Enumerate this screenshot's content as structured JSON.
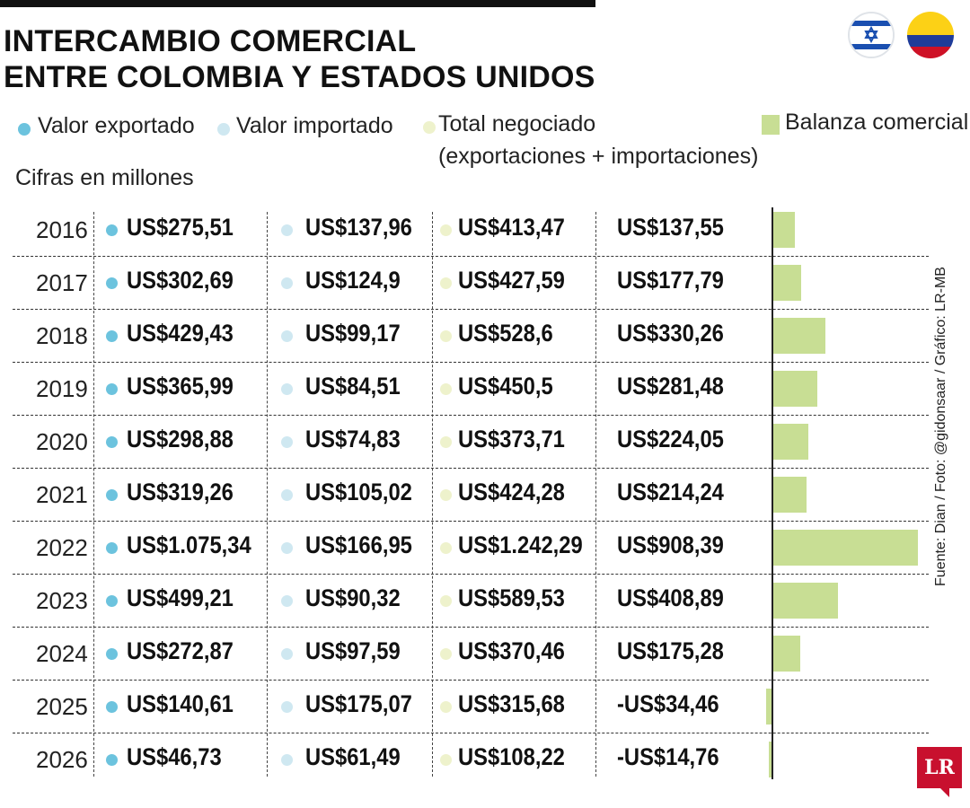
{
  "title": {
    "line1": "INTERCAMBIO COMERCIAL",
    "line2": "ENTRE COLOMBIA Y ESTADOS UNIDOS"
  },
  "legend": {
    "exportado": "Valor exportado",
    "importado": "Valor importado",
    "total_line1": "Total negociado",
    "total_line2": "(exportaciones + importaciones)",
    "balanza": "Balanza comercial"
  },
  "subtitle": "Cifras en millones",
  "credit": "Fuente: Dian / Foto: @gidonsaar / Gráfico: LR-MB",
  "logo": "LR",
  "colors": {
    "exportado": "#6cc3de",
    "importado": "#cfe8f1",
    "total": "#eef2cc",
    "balanza": "#c8de94",
    "title": "#111111"
  },
  "icons": [
    "israel-flag-icon",
    "colombia-flag-icon",
    "lr-logo-icon"
  ],
  "table": {
    "rows": [
      {
        "year": "2016",
        "exportado": "US$275,51",
        "importado": "US$137,96",
        "total": "US$413,47",
        "balanza": "US$137,55"
      },
      {
        "year": "2017",
        "exportado": "US$302,69",
        "importado": "US$124,9",
        "total": "US$427,59",
        "balanza": "US$177,79"
      },
      {
        "year": "2018",
        "exportado": "US$429,43",
        "importado": "US$99,17",
        "total": "US$528,6",
        "balanza": "US$330,26"
      },
      {
        "year": "2019",
        "exportado": "US$365,99",
        "importado": "US$84,51",
        "total": "US$450,5",
        "balanza": "US$281,48"
      },
      {
        "year": "2020",
        "exportado": "US$298,88",
        "importado": "US$74,83",
        "total": "US$373,71",
        "balanza": "US$224,05"
      },
      {
        "year": "2021",
        "exportado": "US$319,26",
        "importado": "US$105,02",
        "total": "US$424,28",
        "balanza": "US$214,24"
      },
      {
        "year": "2022",
        "exportado": "US$1.075,34",
        "importado": "US$166,95",
        "total": "US$1.242,29",
        "balanza": "US$908,39"
      },
      {
        "year": "2023",
        "exportado": "US$499,21",
        "importado": "US$90,32",
        "total": "US$589,53",
        "balanza": "US$408,89"
      },
      {
        "year": "2024",
        "exportado": "US$272,87",
        "importado": "US$97,59",
        "total": "US$370,46",
        "balanza": "US$175,28"
      },
      {
        "year": "2025",
        "exportado": "US$140,61",
        "importado": "US$175,07",
        "total": "US$315,68",
        "balanza": "-US$34,46"
      },
      {
        "year": "2026",
        "exportado": "US$46,73",
        "importado": "US$61,49",
        "total": "US$108,22",
        "balanza": "-US$14,76"
      }
    ]
  },
  "chart_data": {
    "type": "bar",
    "orientation": "horizontal",
    "title": "INTERCAMBIO COMERCIAL ENTRE COLOMBIA Y ESTADOS UNIDOS",
    "categories": [
      "2016",
      "2017",
      "2018",
      "2019",
      "2020",
      "2021",
      "2022",
      "2023",
      "2024",
      "2025",
      "2026"
    ],
    "series": [
      {
        "name": "Balanza comercial",
        "values": [
          137.55,
          177.79,
          330.26,
          281.48,
          224.05,
          214.24,
          908.39,
          408.89,
          175.28,
          -34.46,
          -14.76
        ]
      }
    ],
    "table_columns": [
      "Valor exportado",
      "Valor importado",
      "Total negociado",
      "Balanza comercial"
    ],
    "exportado": [
      275.51,
      302.69,
      429.43,
      365.99,
      298.88,
      319.26,
      1075.34,
      499.21,
      272.87,
      140.61,
      46.73
    ],
    "importado": [
      137.96,
      124.9,
      99.17,
      84.51,
      74.83,
      105.02,
      166.95,
      90.32,
      97.59,
      175.07,
      61.49
    ],
    "total": [
      413.47,
      427.59,
      528.6,
      450.5,
      373.71,
      424.28,
      1242.29,
      589.53,
      370.46,
      315.68,
      108.22
    ],
    "unit": "millones US$",
    "grid": false,
    "legend": "top"
  }
}
